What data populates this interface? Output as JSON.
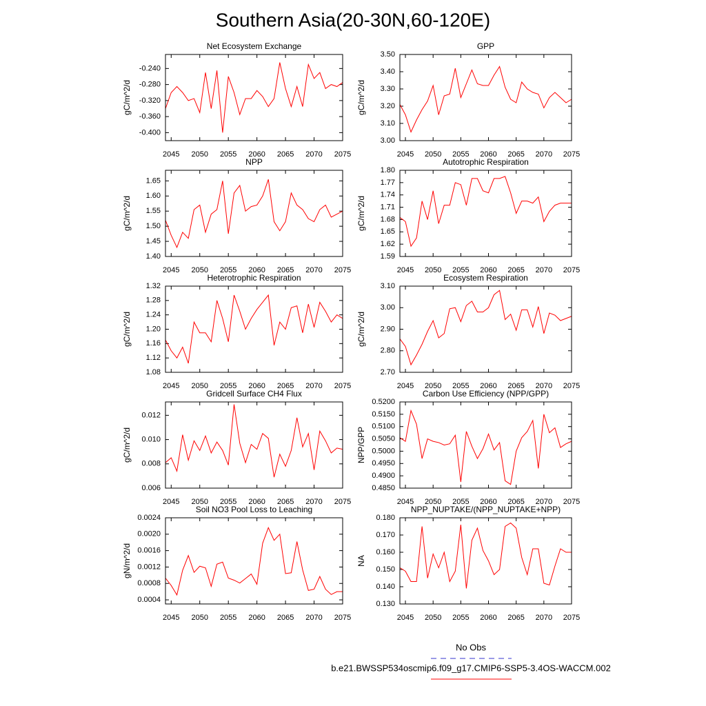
{
  "title": "Southern Asia(20-30N,60-120E)",
  "legend": [
    {
      "name": "No Obs",
      "color": "#3333cc",
      "dashed": true
    },
    {
      "name": "b.e21.BWSSP534oscmip6.f09_g17.CMIP6-SSP5-3.4OS-WACCM.002",
      "color": "#ff0000",
      "dashed": false
    }
  ],
  "chart_data": [
    {
      "type": "line",
      "title": "Net Ecosystem Exchange",
      "y_label": "gC/m^2/d",
      "x": [
        2044,
        2045,
        2046,
        2047,
        2048,
        2049,
        2050,
        2051,
        2052,
        2053,
        2054,
        2055,
        2056,
        2057,
        2058,
        2059,
        2060,
        2061,
        2062,
        2063,
        2064,
        2065,
        2066,
        2067,
        2068,
        2069,
        2070,
        2071,
        2072,
        2073,
        2074,
        2075
      ],
      "xlim": [
        2044,
        2075
      ],
      "xticks": [
        2045,
        2050,
        2055,
        2060,
        2065,
        2070,
        2075
      ],
      "ylim": [
        -0.42,
        -0.205
      ],
      "yticks": [
        {
          "value": -0.24,
          "label": "-0.240"
        },
        {
          "value": -0.28,
          "label": "-0.280"
        },
        {
          "value": -0.32,
          "label": "-0.320"
        },
        {
          "value": -0.36,
          "label": "-0.360"
        },
        {
          "value": -0.4,
          "label": "-0.400"
        }
      ],
      "series": [
        {
          "color": "#ff0000",
          "values": [
            -0.34,
            -0.3,
            -0.285,
            -0.3,
            -0.32,
            -0.315,
            -0.35,
            -0.25,
            -0.34,
            -0.245,
            -0.4,
            -0.26,
            -0.3,
            -0.355,
            -0.315,
            -0.315,
            -0.295,
            -0.31,
            -0.335,
            -0.315,
            -0.225,
            -0.29,
            -0.335,
            -0.285,
            -0.335,
            -0.23,
            -0.265,
            -0.25,
            -0.29,
            -0.28,
            -0.285,
            -0.275
          ]
        }
      ]
    },
    {
      "type": "line",
      "title": "GPP",
      "y_label": "gC/m^2/d",
      "x": [
        2044,
        2045,
        2046,
        2047,
        2048,
        2049,
        2050,
        2051,
        2052,
        2053,
        2054,
        2055,
        2056,
        2057,
        2058,
        2059,
        2060,
        2061,
        2062,
        2063,
        2064,
        2065,
        2066,
        2067,
        2068,
        2069,
        2070,
        2071,
        2072,
        2073,
        2074,
        2075
      ],
      "xlim": [
        2044,
        2075
      ],
      "xticks": [
        2045,
        2050,
        2055,
        2060,
        2065,
        2070,
        2075
      ],
      "ylim": [
        3.0,
        3.5
      ],
      "yticks": [
        {
          "value": 3.0,
          "label": "3.00"
        },
        {
          "value": 3.1,
          "label": "3.10"
        },
        {
          "value": 3.2,
          "label": "3.20"
        },
        {
          "value": 3.3,
          "label": "3.30"
        },
        {
          "value": 3.4,
          "label": "3.40"
        },
        {
          "value": 3.5,
          "label": "3.50"
        }
      ],
      "series": [
        {
          "color": "#ff0000",
          "values": [
            3.21,
            3.15,
            3.05,
            3.12,
            3.18,
            3.23,
            3.32,
            3.15,
            3.26,
            3.27,
            3.42,
            3.25,
            3.33,
            3.41,
            3.33,
            3.32,
            3.32,
            3.38,
            3.43,
            3.31,
            3.24,
            3.22,
            3.34,
            3.3,
            3.28,
            3.27,
            3.19,
            3.25,
            3.28,
            3.25,
            3.22,
            3.24
          ]
        }
      ]
    },
    {
      "type": "line",
      "title": "NPP",
      "y_label": "gC/m^2/d",
      "x": [
        2044,
        2045,
        2046,
        2047,
        2048,
        2049,
        2050,
        2051,
        2052,
        2053,
        2054,
        2055,
        2056,
        2057,
        2058,
        2059,
        2060,
        2061,
        2062,
        2063,
        2064,
        2065,
        2066,
        2067,
        2068,
        2069,
        2070,
        2071,
        2072,
        2073,
        2074,
        2075
      ],
      "xlim": [
        2044,
        2075
      ],
      "xticks": [
        2045,
        2050,
        2055,
        2060,
        2065,
        2070,
        2075
      ],
      "ylim": [
        1.4,
        1.685
      ],
      "yticks": [
        {
          "value": 1.4,
          "label": "1.40"
        },
        1.45,
        {
          "value": 1.5,
          "label": "1.50"
        },
        1.55,
        {
          "value": 1.6,
          "label": "1.60"
        },
        1.65
      ],
      "series": [
        {
          "color": "#ff0000",
          "values": [
            1.52,
            1.47,
            1.43,
            1.48,
            1.46,
            1.555,
            1.57,
            1.48,
            1.54,
            1.555,
            1.65,
            1.475,
            1.61,
            1.635,
            1.55,
            1.565,
            1.57,
            1.6,
            1.655,
            1.515,
            1.485,
            1.515,
            1.61,
            1.57,
            1.555,
            1.525,
            1.515,
            1.555,
            1.57,
            1.53,
            1.54,
            1.55
          ]
        }
      ]
    },
    {
      "type": "line",
      "title": "Autotrophic Respiration",
      "y_label": "gC/m^2/d",
      "x": [
        2044,
        2045,
        2046,
        2047,
        2048,
        2049,
        2050,
        2051,
        2052,
        2053,
        2054,
        2055,
        2056,
        2057,
        2058,
        2059,
        2060,
        2061,
        2062,
        2063,
        2064,
        2065,
        2066,
        2067,
        2068,
        2069,
        2070,
        2071,
        2072,
        2073,
        2074,
        2075
      ],
      "xlim": [
        2044,
        2075
      ],
      "xticks": [
        2045,
        2050,
        2055,
        2060,
        2065,
        2070,
        2075
      ],
      "ylim": [
        1.59,
        1.8
      ],
      "yticks": [
        1.59,
        1.62,
        1.65,
        1.68,
        1.71,
        1.74,
        1.77,
        {
          "value": 1.8,
          "label": "1.80"
        }
      ],
      "series": [
        {
          "color": "#ff0000",
          "values": [
            1.685,
            1.675,
            1.615,
            1.635,
            1.725,
            1.68,
            1.75,
            1.67,
            1.715,
            1.715,
            1.77,
            1.765,
            1.715,
            1.78,
            1.78,
            1.75,
            1.745,
            1.78,
            1.78,
            1.785,
            1.745,
            1.695,
            1.725,
            1.725,
            1.72,
            1.735,
            1.675,
            1.7,
            1.715,
            1.72,
            1.72,
            1.72
          ]
        }
      ]
    },
    {
      "type": "line",
      "title": "Heterotrophic Respiration",
      "y_label": "gC/m^2/d",
      "x": [
        2044,
        2045,
        2046,
        2047,
        2048,
        2049,
        2050,
        2051,
        2052,
        2053,
        2054,
        2055,
        2056,
        2057,
        2058,
        2059,
        2060,
        2061,
        2062,
        2063,
        2064,
        2065,
        2066,
        2067,
        2068,
        2069,
        2070,
        2071,
        2072,
        2073,
        2074,
        2075
      ],
      "xlim": [
        2044,
        2075
      ],
      "xticks": [
        2045,
        2050,
        2055,
        2060,
        2065,
        2070,
        2075
      ],
      "ylim": [
        1.08,
        1.32
      ],
      "yticks": [
        1.08,
        1.12,
        1.16,
        {
          "value": 1.2,
          "label": "1.20"
        },
        1.24,
        1.28,
        1.32
      ],
      "series": [
        {
          "color": "#ff0000",
          "values": [
            1.17,
            1.14,
            1.12,
            1.15,
            1.105,
            1.22,
            1.19,
            1.19,
            1.165,
            1.28,
            1.23,
            1.165,
            1.295,
            1.25,
            1.2,
            1.23,
            1.255,
            1.275,
            1.295,
            1.155,
            1.22,
            1.2,
            1.26,
            1.265,
            1.19,
            1.27,
            1.205,
            1.275,
            1.25,
            1.22,
            1.24,
            1.23
          ]
        }
      ]
    },
    {
      "type": "line",
      "title": "Ecosystem Respiration",
      "y_label": "gC/m^2/d",
      "x": [
        2044,
        2045,
        2046,
        2047,
        2048,
        2049,
        2050,
        2051,
        2052,
        2053,
        2054,
        2055,
        2056,
        2057,
        2058,
        2059,
        2060,
        2061,
        2062,
        2063,
        2064,
        2065,
        2066,
        2067,
        2068,
        2069,
        2070,
        2071,
        2072,
        2073,
        2074,
        2075
      ],
      "xlim": [
        2044,
        2075
      ],
      "xticks": [
        2045,
        2050,
        2055,
        2060,
        2065,
        2070,
        2075
      ],
      "ylim": [
        2.7,
        3.1
      ],
      "yticks": [
        {
          "value": 2.7,
          "label": "2.70"
        },
        {
          "value": 2.8,
          "label": "2.80"
        },
        {
          "value": 2.9,
          "label": "2.90"
        },
        {
          "value": 3.0,
          "label": "3.00"
        },
        {
          "value": 3.1,
          "label": "3.10"
        }
      ],
      "series": [
        {
          "color": "#ff0000",
          "values": [
            2.855,
            2.82,
            2.735,
            2.78,
            2.83,
            2.89,
            2.94,
            2.86,
            2.88,
            2.995,
            3.0,
            2.935,
            3.01,
            3.03,
            2.98,
            2.98,
            3.0,
            3.06,
            3.08,
            2.945,
            2.97,
            2.895,
            2.99,
            2.99,
            2.91,
            3.005,
            2.88,
            2.975,
            2.965,
            2.94,
            2.95,
            2.96
          ]
        }
      ]
    },
    {
      "type": "line",
      "title": "Gridcell Surface CH4 Flux",
      "y_label": "gC/m^2/d",
      "x": [
        2044,
        2045,
        2046,
        2047,
        2048,
        2049,
        2050,
        2051,
        2052,
        2053,
        2054,
        2055,
        2056,
        2057,
        2058,
        2059,
        2060,
        2061,
        2062,
        2063,
        2064,
        2065,
        2066,
        2067,
        2068,
        2069,
        2070,
        2071,
        2072,
        2073,
        2074,
        2075
      ],
      "xlim": [
        2044,
        2075
      ],
      "xticks": [
        2045,
        2050,
        2055,
        2060,
        2065,
        2070,
        2075
      ],
      "ylim": [
        0.006,
        0.0131
      ],
      "yticks": [
        0.006,
        0.008,
        {
          "value": 0.01,
          "label": "0.010"
        },
        0.012
      ],
      "series": [
        {
          "color": "#ff0000",
          "values": [
            0.0081,
            0.0085,
            0.0074,
            0.0104,
            0.0083,
            0.0099,
            0.0091,
            0.0103,
            0.0089,
            0.0098,
            0.0091,
            0.0079,
            0.0129,
            0.0097,
            0.0081,
            0.0096,
            0.0092,
            0.0105,
            0.0101,
            0.0069,
            0.0088,
            0.0078,
            0.0091,
            0.0118,
            0.0094,
            0.0105,
            0.0075,
            0.0107,
            0.0099,
            0.0089,
            0.0093,
            0.0092
          ]
        }
      ]
    },
    {
      "type": "line",
      "title": "Carbon Use Efficiency (NPP/GPP)",
      "y_label": "NPP/GPP",
      "x": [
        2044,
        2045,
        2046,
        2047,
        2048,
        2049,
        2050,
        2051,
        2052,
        2053,
        2054,
        2055,
        2056,
        2057,
        2058,
        2059,
        2060,
        2061,
        2062,
        2063,
        2064,
        2065,
        2066,
        2067,
        2068,
        2069,
        2070,
        2071,
        2072,
        2073,
        2074,
        2075
      ],
      "xlim": [
        2044,
        2075
      ],
      "xticks": [
        2045,
        2050,
        2055,
        2060,
        2065,
        2070,
        2075
      ],
      "ylim": [
        0.485,
        0.52
      ],
      "yticks": [
        {
          "value": 0.485,
          "label": "0.4850"
        },
        {
          "value": 0.49,
          "label": "0.4900"
        },
        {
          "value": 0.495,
          "label": "0.4950"
        },
        {
          "value": 0.5,
          "label": "0.5000"
        },
        {
          "value": 0.505,
          "label": "0.5050"
        },
        {
          "value": 0.51,
          "label": "0.5100"
        },
        {
          "value": 0.515,
          "label": "0.5150"
        },
        {
          "value": 0.52,
          "label": "0.5200"
        }
      ],
      "series": [
        {
          "color": "#ff0000",
          "values": [
            0.5055,
            0.504,
            0.5165,
            0.511,
            0.497,
            0.505,
            0.504,
            0.5035,
            0.5025,
            0.503,
            0.5065,
            0.4875,
            0.508,
            0.502,
            0.497,
            0.501,
            0.507,
            0.5005,
            0.5035,
            0.488,
            0.4865,
            0.5,
            0.5055,
            0.508,
            0.5125,
            0.493,
            0.515,
            0.5075,
            0.5095,
            0.5015,
            0.503,
            0.504
          ]
        }
      ]
    },
    {
      "type": "line",
      "title": "Soil NO3 Pool Loss to Leaching",
      "y_label": "gN/m^2/d",
      "x": [
        2044,
        2045,
        2046,
        2047,
        2048,
        2049,
        2050,
        2051,
        2052,
        2053,
        2054,
        2055,
        2056,
        2057,
        2058,
        2059,
        2060,
        2061,
        2062,
        2063,
        2064,
        2065,
        2066,
        2067,
        2068,
        2069,
        2070,
        2071,
        2072,
        2073,
        2074,
        2075
      ],
      "xlim": [
        2044,
        2075
      ],
      "xticks": [
        2045,
        2050,
        2055,
        2060,
        2065,
        2070,
        2075
      ],
      "ylim": [
        0.0003,
        0.0024
      ],
      "yticks": [
        0.0004,
        0.0008,
        0.0012,
        0.0016,
        {
          "value": 0.002,
          "label": "0.0020"
        },
        0.0024
      ],
      "series": [
        {
          "color": "#ff0000",
          "values": [
            0.00093,
            0.00075,
            0.00052,
            0.00112,
            0.00148,
            0.00107,
            0.00122,
            0.00118,
            0.00073,
            0.00127,
            0.00132,
            0.00093,
            0.00088,
            0.00081,
            0.00092,
            0.00103,
            0.00078,
            0.00178,
            0.00216,
            0.00185,
            0.002,
            0.00104,
            0.00106,
            0.00182,
            0.00113,
            0.00063,
            0.00066,
            0.00097,
            0.00066,
            0.00053,
            0.0006,
            0.0006
          ]
        }
      ]
    },
    {
      "type": "line",
      "title": "NPP_NUPTAKE/(NPP_NUPTAKE+NPP)",
      "y_label": "NA",
      "x": [
        2044,
        2045,
        2046,
        2047,
        2048,
        2049,
        2050,
        2051,
        2052,
        2053,
        2054,
        2055,
        2056,
        2057,
        2058,
        2059,
        2060,
        2061,
        2062,
        2063,
        2064,
        2065,
        2066,
        2067,
        2068,
        2069,
        2070,
        2071,
        2072,
        2073,
        2074,
        2075
      ],
      "xlim": [
        2044,
        2075
      ],
      "xticks": [
        2045,
        2050,
        2055,
        2060,
        2065,
        2070,
        2075
      ],
      "ylim": [
        0.13,
        0.18
      ],
      "yticks": [
        {
          "value": 0.13,
          "label": "0.130"
        },
        {
          "value": 0.14,
          "label": "0.140"
        },
        {
          "value": 0.15,
          "label": "0.150"
        },
        {
          "value": 0.16,
          "label": "0.160"
        },
        {
          "value": 0.17,
          "label": "0.170"
        },
        {
          "value": 0.18,
          "label": "0.180"
        }
      ],
      "series": [
        {
          "color": "#ff0000",
          "values": [
            0.151,
            0.149,
            0.143,
            0.143,
            0.175,
            0.145,
            0.159,
            0.151,
            0.16,
            0.143,
            0.149,
            0.176,
            0.139,
            0.167,
            0.174,
            0.161,
            0.155,
            0.147,
            0.15,
            0.175,
            0.177,
            0.174,
            0.157,
            0.147,
            0.162,
            0.162,
            0.142,
            0.141,
            0.152,
            0.162,
            0.16,
            0.16
          ]
        }
      ]
    }
  ]
}
